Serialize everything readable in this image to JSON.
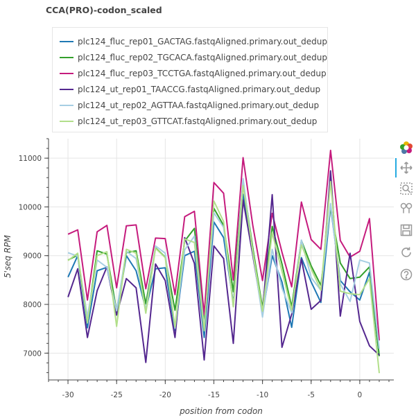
{
  "chart_data": {
    "type": "line",
    "title": "CCA(PRO)-codon_scaled",
    "xlabel": "position from codon",
    "ylabel": "5'seq RPM",
    "xlim": [
      -32,
      3.5
    ],
    "ylim": [
      6450,
      11400
    ],
    "grid": true,
    "legend_position": "top",
    "x_ticks": [
      -30,
      -25,
      -20,
      -15,
      -10,
      -5,
      0
    ],
    "y_ticks": [
      7000,
      8000,
      9000,
      10000,
      11000
    ],
    "x": [
      -30,
      -29,
      -28,
      -27,
      -26,
      -25,
      -24,
      -23,
      -22,
      -21,
      -20,
      -19,
      -18,
      -17,
      -16,
      -15,
      -14,
      -13,
      -12,
      -11,
      -10,
      -9,
      -8,
      -7,
      -6,
      -5,
      -4,
      -3,
      -2,
      -1,
      0,
      1,
      2
    ],
    "series": [
      {
        "name": "plc124_fluc_rep01_GACTAG.fastqAligned.primary.out_dedup",
        "color": "#1f78b4",
        "values": [
          8560,
          9000,
          7520,
          8690,
          8760,
          7800,
          9000,
          8690,
          7900,
          8730,
          8750,
          7460,
          9000,
          9090,
          7320,
          9690,
          9370,
          8030,
          10260,
          9150,
          7800,
          9000,
          8460,
          7530,
          8960,
          8460,
          8040,
          10010,
          8490,
          8260,
          8090,
          8660,
          6940
        ]
      },
      {
        "name": "plc124_fluc_rep02_TGCACA.fastqAligned.primary.out_dedup",
        "color": "#33a02c",
        "values": [
          8910,
          9010,
          7650,
          9100,
          9030,
          7860,
          9060,
          9100,
          8010,
          9160,
          8970,
          7880,
          9300,
          9560,
          7700,
          9970,
          9620,
          8260,
          10520,
          9160,
          7930,
          9600,
          8830,
          7950,
          9310,
          8790,
          8390,
          10000,
          8850,
          8530,
          8560,
          8770,
          6940
        ]
      },
      {
        "name": "plc124_fluc_rep03_TCCTGA.fastqAligned.primary.out_dedup",
        "color": "#c51b7d",
        "values": [
          9440,
          9530,
          8090,
          9490,
          9620,
          8340,
          9610,
          9630,
          8320,
          9360,
          9350,
          8200,
          9800,
          9910,
          7790,
          10500,
          10280,
          8500,
          11010,
          9620,
          8490,
          9870,
          9070,
          8360,
          10100,
          9330,
          9130,
          11160,
          9310,
          8970,
          9090,
          9760,
          7260
        ]
      },
      {
        "name": "plc124_ut_rep01_TAACCG.fastqAligned.primary.out_dedup",
        "color": "#54278f",
        "values": [
          8150,
          8730,
          7320,
          8280,
          8770,
          7780,
          8530,
          8340,
          6810,
          8830,
          8490,
          7320,
          9370,
          8840,
          6860,
          9200,
          8940,
          7200,
          10140,
          9010,
          7810,
          10250,
          7120,
          7800,
          8930,
          7900,
          8080,
          10740,
          7760,
          9050,
          7650,
          7150,
          6960
        ]
      },
      {
        "name": "plc124_ut_rep02_AGTTAA.fastqAligned.primary.out_dedup",
        "color": "#a6cee3",
        "values": [
          9060,
          8990,
          7750,
          8910,
          8760,
          7870,
          9090,
          8940,
          7870,
          9200,
          9050,
          7510,
          9120,
          9400,
          7530,
          9880,
          9580,
          7960,
          10580,
          9070,
          7740,
          9130,
          8330,
          7830,
          9320,
          8550,
          8290,
          10070,
          8420,
          8060,
          8910,
          8850,
          7090
        ]
      },
      {
        "name": "plc124_ut_rep03_GTTCAT.fastqAligned.primary.out_dedup",
        "color": "#b2df8a",
        "values": [
          8900,
          9050,
          7620,
          9000,
          9080,
          7550,
          9130,
          9050,
          7820,
          9150,
          8960,
          7540,
          9340,
          9270,
          7460,
          10120,
          9700,
          7950,
          10440,
          9090,
          7860,
          9470,
          8680,
          7880,
          9220,
          8730,
          8290,
          10520,
          8270,
          8220,
          8200,
          8530,
          6590
        ]
      }
    ]
  }
}
